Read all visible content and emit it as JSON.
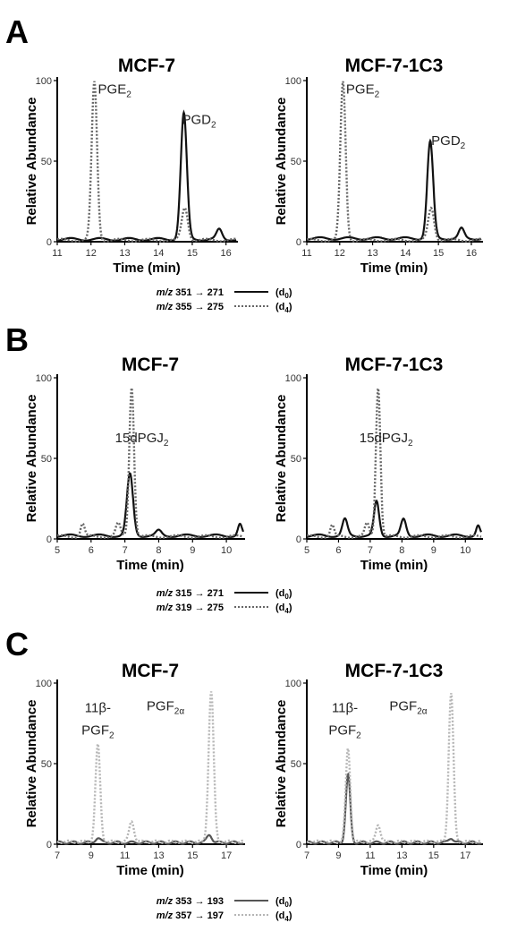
{
  "panels": [
    {
      "letter": "A",
      "legend": [
        {
          "prefix": "m/z",
          "transition": "351 → 271",
          "tag": "(d",
          "sub": "0",
          "tail": ")",
          "style": "solid"
        },
        {
          "prefix": "m/z",
          "transition": "355 → 275",
          "tag": "(d",
          "sub": "4",
          "tail": ")",
          "style": "dotted"
        }
      ]
    },
    {
      "letter": "B",
      "legend": [
        {
          "prefix": "m/z",
          "transition": "315 → 271",
          "tag": "(d",
          "sub": "0",
          "tail": ")",
          "style": "solid"
        },
        {
          "prefix": "m/z",
          "transition": "319 → 275",
          "tag": "(d",
          "sub": "4",
          "tail": ")",
          "style": "dotted"
        }
      ]
    },
    {
      "letter": "C",
      "legend": [
        {
          "prefix": "m/z",
          "transition": "353 → 193",
          "tag": "(d",
          "sub": "0",
          "tail": ")",
          "style": "solid"
        },
        {
          "prefix": "m/z",
          "transition": "357 → 197",
          "tag": "(d",
          "sub": "4",
          "tail": ")",
          "style": "dotted"
        }
      ]
    }
  ],
  "colors": {
    "panel_A_solid": "#111111",
    "panel_A_dotted": "#666666",
    "panel_B_solid": "#111111",
    "panel_B_dotted": "#666666",
    "panel_C_solid": "#555555",
    "panel_C_dotted": "#b5b5b5"
  },
  "chart_data": [
    {
      "id": "A-MCF-7",
      "panel": "A",
      "type": "line",
      "title": "MCF-7",
      "xlabel": "Time (min)",
      "ylabel": "Relative Abundance",
      "xlim": [
        11,
        16.3
      ],
      "ylim": [
        0,
        100
      ],
      "xticks": [
        11,
        12,
        13,
        14,
        15,
        16
      ],
      "yticks": [
        0,
        50,
        100
      ],
      "peak_labels": [
        {
          "text": "PGE",
          "sub": "2",
          "x": 12.7,
          "y": 92
        },
        {
          "text": "PGD",
          "sub": "2",
          "x": 15.2,
          "y": 73
        }
      ],
      "series": [
        {
          "style": "solid",
          "peaks": [
            {
              "t": 14.75,
              "h": 78,
              "w": 0.09
            },
            {
              "t": 15.8,
              "h": 6,
              "w": 0.08
            }
          ],
          "baseline": 1.5
        },
        {
          "style": "dotted",
          "peaks": [
            {
              "t": 12.1,
              "h": 98,
              "w": 0.08
            },
            {
              "t": 14.78,
              "h": 20,
              "w": 0.09
            }
          ],
          "baseline": 1
        }
      ]
    },
    {
      "id": "A-MCF-7-1C3",
      "panel": "A",
      "type": "line",
      "title": "MCF-7-1C3",
      "xlabel": "Time (min)",
      "ylabel": "",
      "xlim": [
        11,
        16.3
      ],
      "ylim": [
        0,
        100
      ],
      "xticks": [
        11,
        12,
        13,
        14,
        15,
        16
      ],
      "yticks": [
        0,
        50,
        100
      ],
      "peak_labels": [
        {
          "text": "PGE",
          "sub": "2",
          "x": 12.7,
          "y": 92
        },
        {
          "text": "PGD",
          "sub": "2",
          "x": 15.3,
          "y": 60
        }
      ],
      "series": [
        {
          "style": "solid",
          "peaks": [
            {
              "t": 14.75,
              "h": 60,
              "w": 0.09
            },
            {
              "t": 15.7,
              "h": 6,
              "w": 0.08
            }
          ],
          "baseline": 2
        },
        {
          "style": "dotted",
          "peaks": [
            {
              "t": 12.1,
              "h": 98,
              "w": 0.08
            },
            {
              "t": 14.78,
              "h": 20,
              "w": 0.09
            }
          ],
          "baseline": 1
        }
      ]
    },
    {
      "id": "B-MCF-7",
      "panel": "B",
      "type": "line",
      "title": "MCF-7",
      "xlabel": "Time (min)",
      "ylabel": "Relative Abundance",
      "xlim": [
        5,
        10.5
      ],
      "ylim": [
        0,
        100
      ],
      "xticks": [
        5,
        6,
        7,
        8,
        9,
        10
      ],
      "yticks": [
        0,
        50,
        100
      ],
      "peak_labels": [
        {
          "text": "15dPGJ",
          "sub": "2",
          "x": 7.5,
          "y": 60
        }
      ],
      "series": [
        {
          "style": "solid",
          "peaks": [
            {
              "t": 7.15,
              "h": 38,
              "w": 0.09
            },
            {
              "t": 8.0,
              "h": 3,
              "w": 0.08
            },
            {
              "t": 10.4,
              "h": 7,
              "w": 0.06
            }
          ],
          "baseline": 2
        },
        {
          "style": "dotted",
          "peaks": [
            {
              "t": 7.2,
              "h": 93,
              "w": 0.07
            },
            {
              "t": 5.75,
              "h": 8,
              "w": 0.06
            },
            {
              "t": 6.8,
              "h": 8,
              "w": 0.07
            }
          ],
          "baseline": 1.5
        }
      ]
    },
    {
      "id": "B-MCF-7-1C3",
      "panel": "B",
      "type": "line",
      "title": "MCF-7-1C3",
      "xlabel": "Time (min)",
      "ylabel": "",
      "xlim": [
        5,
        10.5
      ],
      "ylim": [
        0,
        100
      ],
      "xticks": [
        5,
        6,
        7,
        8,
        9,
        10
      ],
      "yticks": [
        0,
        50,
        100
      ],
      "peak_labels": [
        {
          "text": "15dPGJ",
          "sub": "2",
          "x": 7.5,
          "y": 60
        }
      ],
      "series": [
        {
          "style": "solid",
          "peaks": [
            {
              "t": 7.2,
              "h": 21,
              "w": 0.08
            },
            {
              "t": 6.2,
              "h": 10,
              "w": 0.08
            },
            {
              "t": 8.05,
              "h": 10,
              "w": 0.08
            },
            {
              "t": 10.4,
              "h": 6,
              "w": 0.06
            }
          ],
          "baseline": 2
        },
        {
          "style": "dotted",
          "peaks": [
            {
              "t": 7.25,
              "h": 93,
              "w": 0.07
            },
            {
              "t": 5.8,
              "h": 7,
              "w": 0.06
            },
            {
              "t": 6.9,
              "h": 8,
              "w": 0.07
            }
          ],
          "baseline": 1.5
        }
      ]
    },
    {
      "id": "C-MCF-7",
      "panel": "C",
      "type": "line",
      "title": "MCF-7",
      "xlabel": "Time (min)",
      "ylabel": "Relative Abundance",
      "xlim": [
        7,
        18
      ],
      "ylim": [
        0,
        100
      ],
      "xticks": [
        7,
        9,
        11,
        13,
        15,
        17
      ],
      "yticks": [
        0,
        50,
        100
      ],
      "peak_labels": [
        {
          "text": "11β-",
          "sub": "",
          "x": 9.4,
          "y": 82
        },
        {
          "text": "PGF",
          "sub": "2",
          "x": 9.4,
          "y": 68
        },
        {
          "text": "PGF",
          "sub": "2α",
          "x": 13.4,
          "y": 83
        }
      ],
      "series": [
        {
          "style": "solid",
          "peaks": [
            {
              "t": 9.4,
              "h": 3,
              "w": 0.15
            },
            {
              "t": 16.0,
              "h": 5,
              "w": 0.15
            }
          ],
          "baseline": 1
        },
        {
          "style": "dotted",
          "peaks": [
            {
              "t": 9.4,
              "h": 60,
              "w": 0.14
            },
            {
              "t": 11.4,
              "h": 13,
              "w": 0.14
            },
            {
              "t": 16.1,
              "h": 93,
              "w": 0.15
            }
          ],
          "baseline": 1.5
        }
      ]
    },
    {
      "id": "C-MCF-7-1C3",
      "panel": "C",
      "type": "line",
      "title": "MCF-7-1C3",
      "xlabel": "Time (min)",
      "ylabel": "",
      "xlim": [
        7,
        18
      ],
      "ylim": [
        0,
        100
      ],
      "xticks": [
        7,
        9,
        11,
        13,
        15,
        17
      ],
      "yticks": [
        0,
        50,
        100
      ],
      "peak_labels": [
        {
          "text": "11β-",
          "sub": "",
          "x": 9.4,
          "y": 82
        },
        {
          "text": "PGF",
          "sub": "2",
          "x": 9.4,
          "y": 68
        },
        {
          "text": "PGF",
          "sub": "2α",
          "x": 13.4,
          "y": 83
        }
      ],
      "series": [
        {
          "style": "solid",
          "peaks": [
            {
              "t": 9.6,
              "h": 42,
              "w": 0.14
            },
            {
              "t": 16.1,
              "h": 3,
              "w": 0.15
            }
          ],
          "baseline": 1
        },
        {
          "style": "dotted",
          "peaks": [
            {
              "t": 9.6,
              "h": 58,
              "w": 0.14
            },
            {
              "t": 11.5,
              "h": 11,
              "w": 0.14
            },
            {
              "t": 16.1,
              "h": 92,
              "w": 0.15
            }
          ],
          "baseline": 1.5
        }
      ]
    }
  ]
}
